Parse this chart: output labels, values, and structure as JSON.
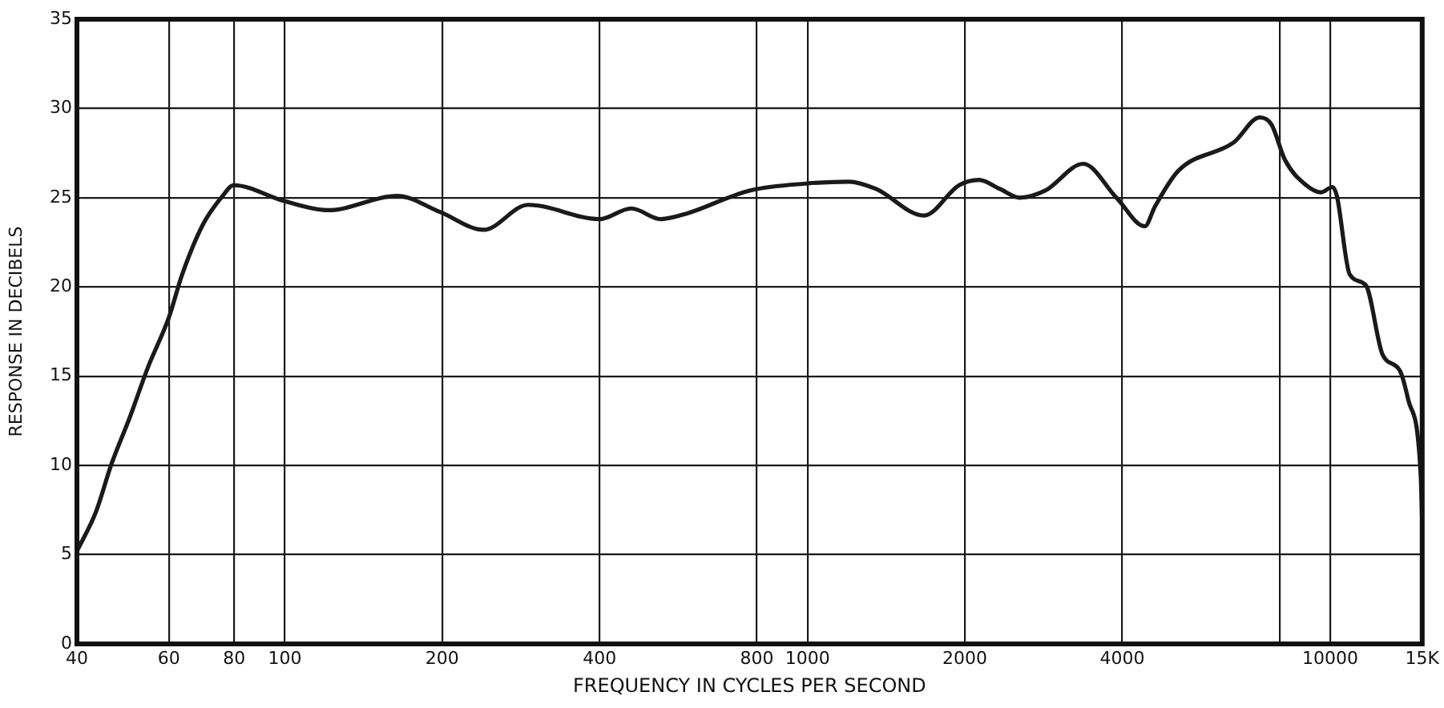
{
  "chart_data": {
    "type": "line",
    "xlabel": "FREQUENCY IN CYCLES PER SECOND",
    "ylabel": "RESPONSE IN DECIBELS",
    "log": "x",
    "xlim": [
      40,
      15000
    ],
    "ylim": [
      0,
      35
    ],
    "xticks": [
      40,
      60,
      80,
      100,
      200,
      400,
      800,
      1000,
      2000,
      4000,
      {
        "value": 8000,
        "label": null
      },
      10000,
      {
        "value": 15000,
        "label": "15K"
      }
    ],
    "yticks": [
      0,
      5,
      10,
      15,
      20,
      25,
      30,
      35
    ],
    "grid": true,
    "marker": "none",
    "line_style": "solid",
    "series": [
      {
        "color": "#1a1a1a",
        "x": [
          40,
          43.5,
          46.6,
          50.5,
          54.7,
          60,
          63.6,
          69.7,
          76,
          79.8,
          100,
          121,
          164,
          198,
          240,
          292,
          400,
          460,
          524,
          585,
          775,
          1000,
          1200,
          1350,
          1670,
          1950,
          2130,
          2330,
          2550,
          2850,
          3370,
          3900,
          4420,
          4620,
          5120,
          6540,
          7330,
          7720,
          8200,
          9000,
          9600,
          10100,
          10300,
          10900,
          11700,
          12600,
          13600,
          14100,
          14900,
          15000
        ],
        "values": [
          5.2,
          7.4,
          10.1,
          12.7,
          15.5,
          18.3,
          20.7,
          23.5,
          25.1,
          25.7,
          24.8,
          24.3,
          25.1,
          24.2,
          23.2,
          24.6,
          23.8,
          24.4,
          23.8,
          24.1,
          25.4,
          25.8,
          25.9,
          25.5,
          24.0,
          25.7,
          26.0,
          25.5,
          25.0,
          25.4,
          26.9,
          25.0,
          23.4,
          24.5,
          26.5,
          28.1,
          29.5,
          29.1,
          27.1,
          25.7,
          25.3,
          25.6,
          25.1,
          20.7,
          20.1,
          16.2,
          15.3,
          13.7,
          9.5,
          6.8
        ]
      }
    ]
  }
}
